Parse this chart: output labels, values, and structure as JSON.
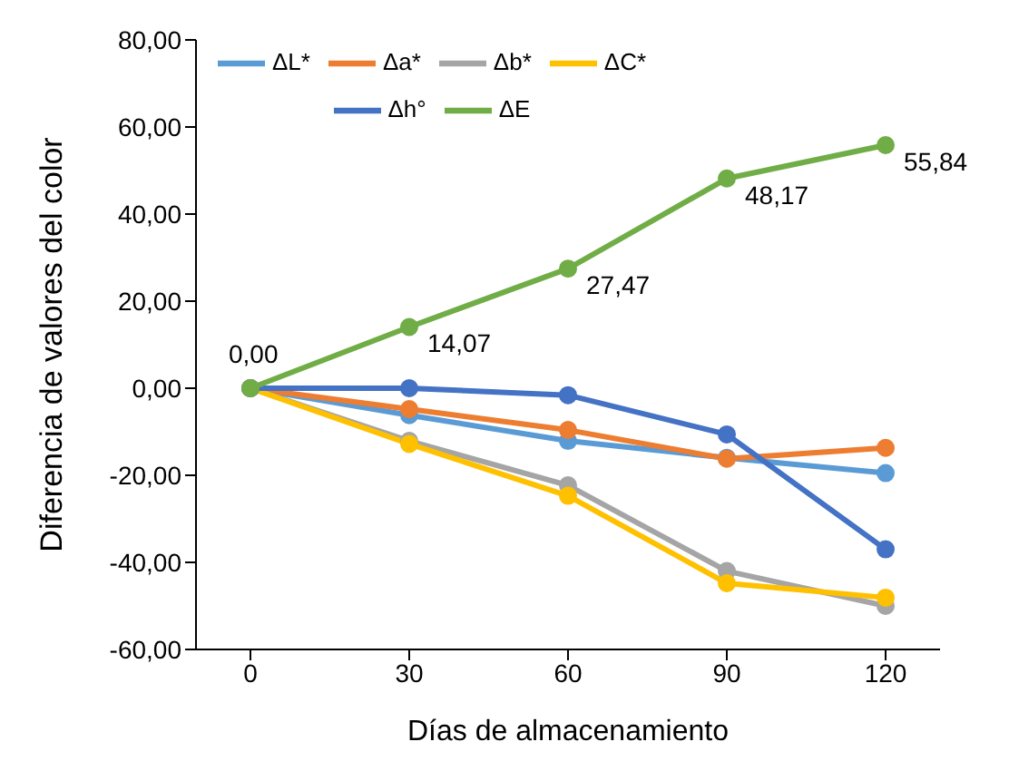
{
  "chart_data": {
    "type": "line",
    "xlabel": "Días de almacenamiento",
    "ylabel": "Diferencia de valores del color",
    "categories": [
      "0",
      "30",
      "60",
      "90",
      "120"
    ],
    "ylim": [
      -60,
      80
    ],
    "yticks": [
      {
        "value": -60,
        "label": "-60,00"
      },
      {
        "value": -40,
        "label": "-40,00"
      },
      {
        "value": -20,
        "label": "-20,00"
      },
      {
        "value": 0,
        "label": "0,00"
      },
      {
        "value": 20,
        "label": "20,00"
      },
      {
        "value": 40,
        "label": "40,00"
      },
      {
        "value": 60,
        "label": "60,00"
      },
      {
        "value": 80,
        "label": "80,00"
      }
    ],
    "marker": "circle",
    "legend": "top left",
    "grid": false,
    "series": [
      {
        "name": "ΔL*",
        "color": "#5b9bd5",
        "values": [
          0,
          -6.2,
          -12.1,
          -16,
          -19.5
        ]
      },
      {
        "name": "Δa*",
        "color": "#ed7d31",
        "values": [
          0,
          -4.8,
          -9.6,
          -16.2,
          -13.7
        ]
      },
      {
        "name": "Δb*",
        "color": "#a5a5a5",
        "values": [
          0,
          -12.1,
          -22.3,
          -42,
          -50
        ]
      },
      {
        "name": "ΔC*",
        "color": "#ffc000",
        "values": [
          0,
          -12.8,
          -24.7,
          -44.8,
          -48.1
        ]
      },
      {
        "name": "Δh°",
        "color": "#4472c4",
        "values": [
          0,
          0,
          -1.6,
          -10.6,
          -37
        ]
      },
      {
        "name": "ΔE",
        "color": "#70ad47",
        "values": [
          0,
          14.07,
          27.47,
          48.17,
          55.84
        ],
        "value_labels": [
          "0,00",
          "14,07",
          "27,47",
          "48,17",
          "55,84"
        ]
      }
    ]
  }
}
